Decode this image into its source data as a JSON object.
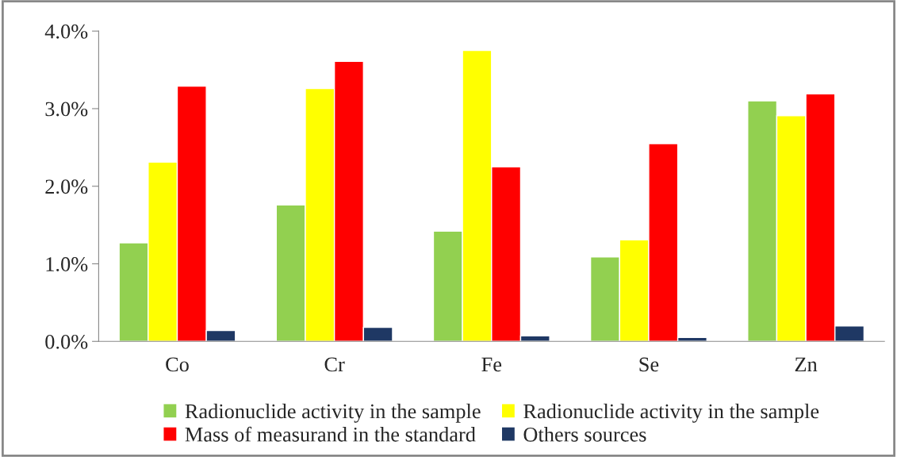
{
  "chart_data": {
    "type": "bar",
    "categories": [
      "Co",
      "Cr",
      "Fe",
      "Se",
      "Zn"
    ],
    "series": [
      {
        "name": "Radionuclide activity in the sample",
        "color": "#92d050",
        "values": [
          1.27,
          1.76,
          1.42,
          1.09,
          3.1
        ]
      },
      {
        "name": "Radionuclide activity in the sample",
        "color": "#ffff00",
        "values": [
          2.31,
          3.26,
          3.75,
          1.31,
          2.91
        ]
      },
      {
        "name": "Mass of measurand in the standard",
        "color": "#ff0000",
        "values": [
          3.29,
          3.61,
          2.25,
          2.55,
          3.19
        ]
      },
      {
        "name": "Others sources",
        "color": "#1f3864",
        "values": [
          0.14,
          0.18,
          0.07,
          0.05,
          0.2
        ]
      }
    ],
    "ylim": [
      0,
      4
    ],
    "yticks": [
      {
        "value": 0,
        "label": "0.0%"
      },
      {
        "value": 1,
        "label": "1.0%"
      },
      {
        "value": 2,
        "label": "2.0%"
      },
      {
        "value": 3,
        "label": "3.0%"
      },
      {
        "value": 4,
        "label": "4.0%"
      }
    ],
    "grid": false,
    "legend": "bottom"
  }
}
